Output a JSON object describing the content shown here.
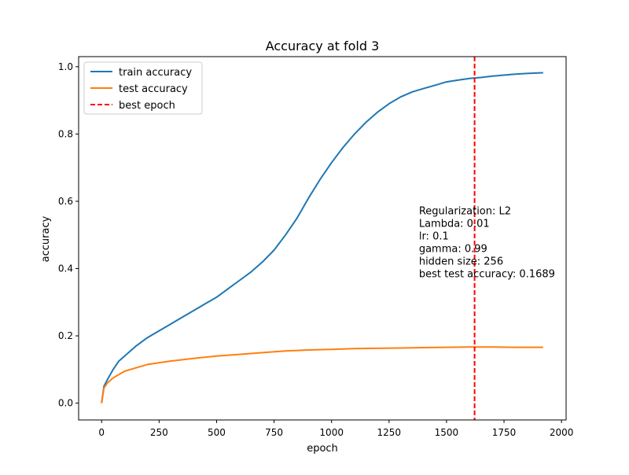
{
  "chart_data": {
    "type": "line",
    "title": "Accuracy at fold 3",
    "xlabel": "epoch",
    "ylabel": "accuracy",
    "xlim": [
      -100,
      2020
    ],
    "ylim": [
      -0.05,
      1.03
    ],
    "xticks": [
      0,
      250,
      500,
      750,
      1000,
      1250,
      1500,
      1750,
      2000
    ],
    "yticks": [
      0.0,
      0.2,
      0.4,
      0.6,
      0.8,
      1.0
    ],
    "xtick_labels": [
      "0",
      "250",
      "500",
      "750",
      "1000",
      "1250",
      "1500",
      "1750",
      "2000"
    ],
    "ytick_labels": [
      "0.0",
      "0.2",
      "0.4",
      "0.6",
      "0.8",
      "1.0"
    ],
    "grid": false,
    "legend_position": "upper-left",
    "series": [
      {
        "name": "train accuracy",
        "color": "#1f77b4",
        "x": [
          0,
          10,
          25,
          50,
          75,
          100,
          150,
          200,
          250,
          300,
          350,
          400,
          450,
          500,
          550,
          600,
          650,
          700,
          750,
          800,
          850,
          900,
          950,
          1000,
          1050,
          1100,
          1150,
          1200,
          1250,
          1300,
          1350,
          1400,
          1450,
          1500,
          1550,
          1600,
          1650,
          1700,
          1750,
          1800,
          1850,
          1920
        ],
        "y": [
          0.0,
          0.05,
          0.07,
          0.1,
          0.125,
          0.14,
          0.17,
          0.195,
          0.215,
          0.235,
          0.255,
          0.275,
          0.295,
          0.315,
          0.34,
          0.365,
          0.39,
          0.42,
          0.455,
          0.5,
          0.55,
          0.61,
          0.665,
          0.715,
          0.76,
          0.8,
          0.835,
          0.865,
          0.89,
          0.91,
          0.925,
          0.935,
          0.945,
          0.955,
          0.96,
          0.965,
          0.968,
          0.972,
          0.975,
          0.978,
          0.98,
          0.982
        ]
      },
      {
        "name": "test accuracy",
        "color": "#ff7f0e",
        "x": [
          0,
          10,
          25,
          50,
          75,
          100,
          150,
          200,
          250,
          300,
          400,
          500,
          600,
          700,
          800,
          900,
          1000,
          1100,
          1200,
          1300,
          1400,
          1500,
          1600,
          1700,
          1800,
          1920
        ],
        "y": [
          0.0,
          0.045,
          0.06,
          0.075,
          0.085,
          0.095,
          0.105,
          0.115,
          0.12,
          0.125,
          0.133,
          0.14,
          0.145,
          0.15,
          0.155,
          0.158,
          0.16,
          0.162,
          0.163,
          0.164,
          0.165,
          0.166,
          0.167,
          0.167,
          0.166,
          0.166
        ]
      },
      {
        "name": "best epoch",
        "color": "#ff0000",
        "style": "dashed",
        "x_value": 1622
      }
    ],
    "annotation": {
      "lines": [
        "Regularization: L2",
        "Lambda: 0.01",
        "lr: 0.1",
        "gamma: 0.99",
        "hidden size: 256",
        "best test accuracy: 0.1689"
      ],
      "x": 1380,
      "y": 0.445
    }
  }
}
